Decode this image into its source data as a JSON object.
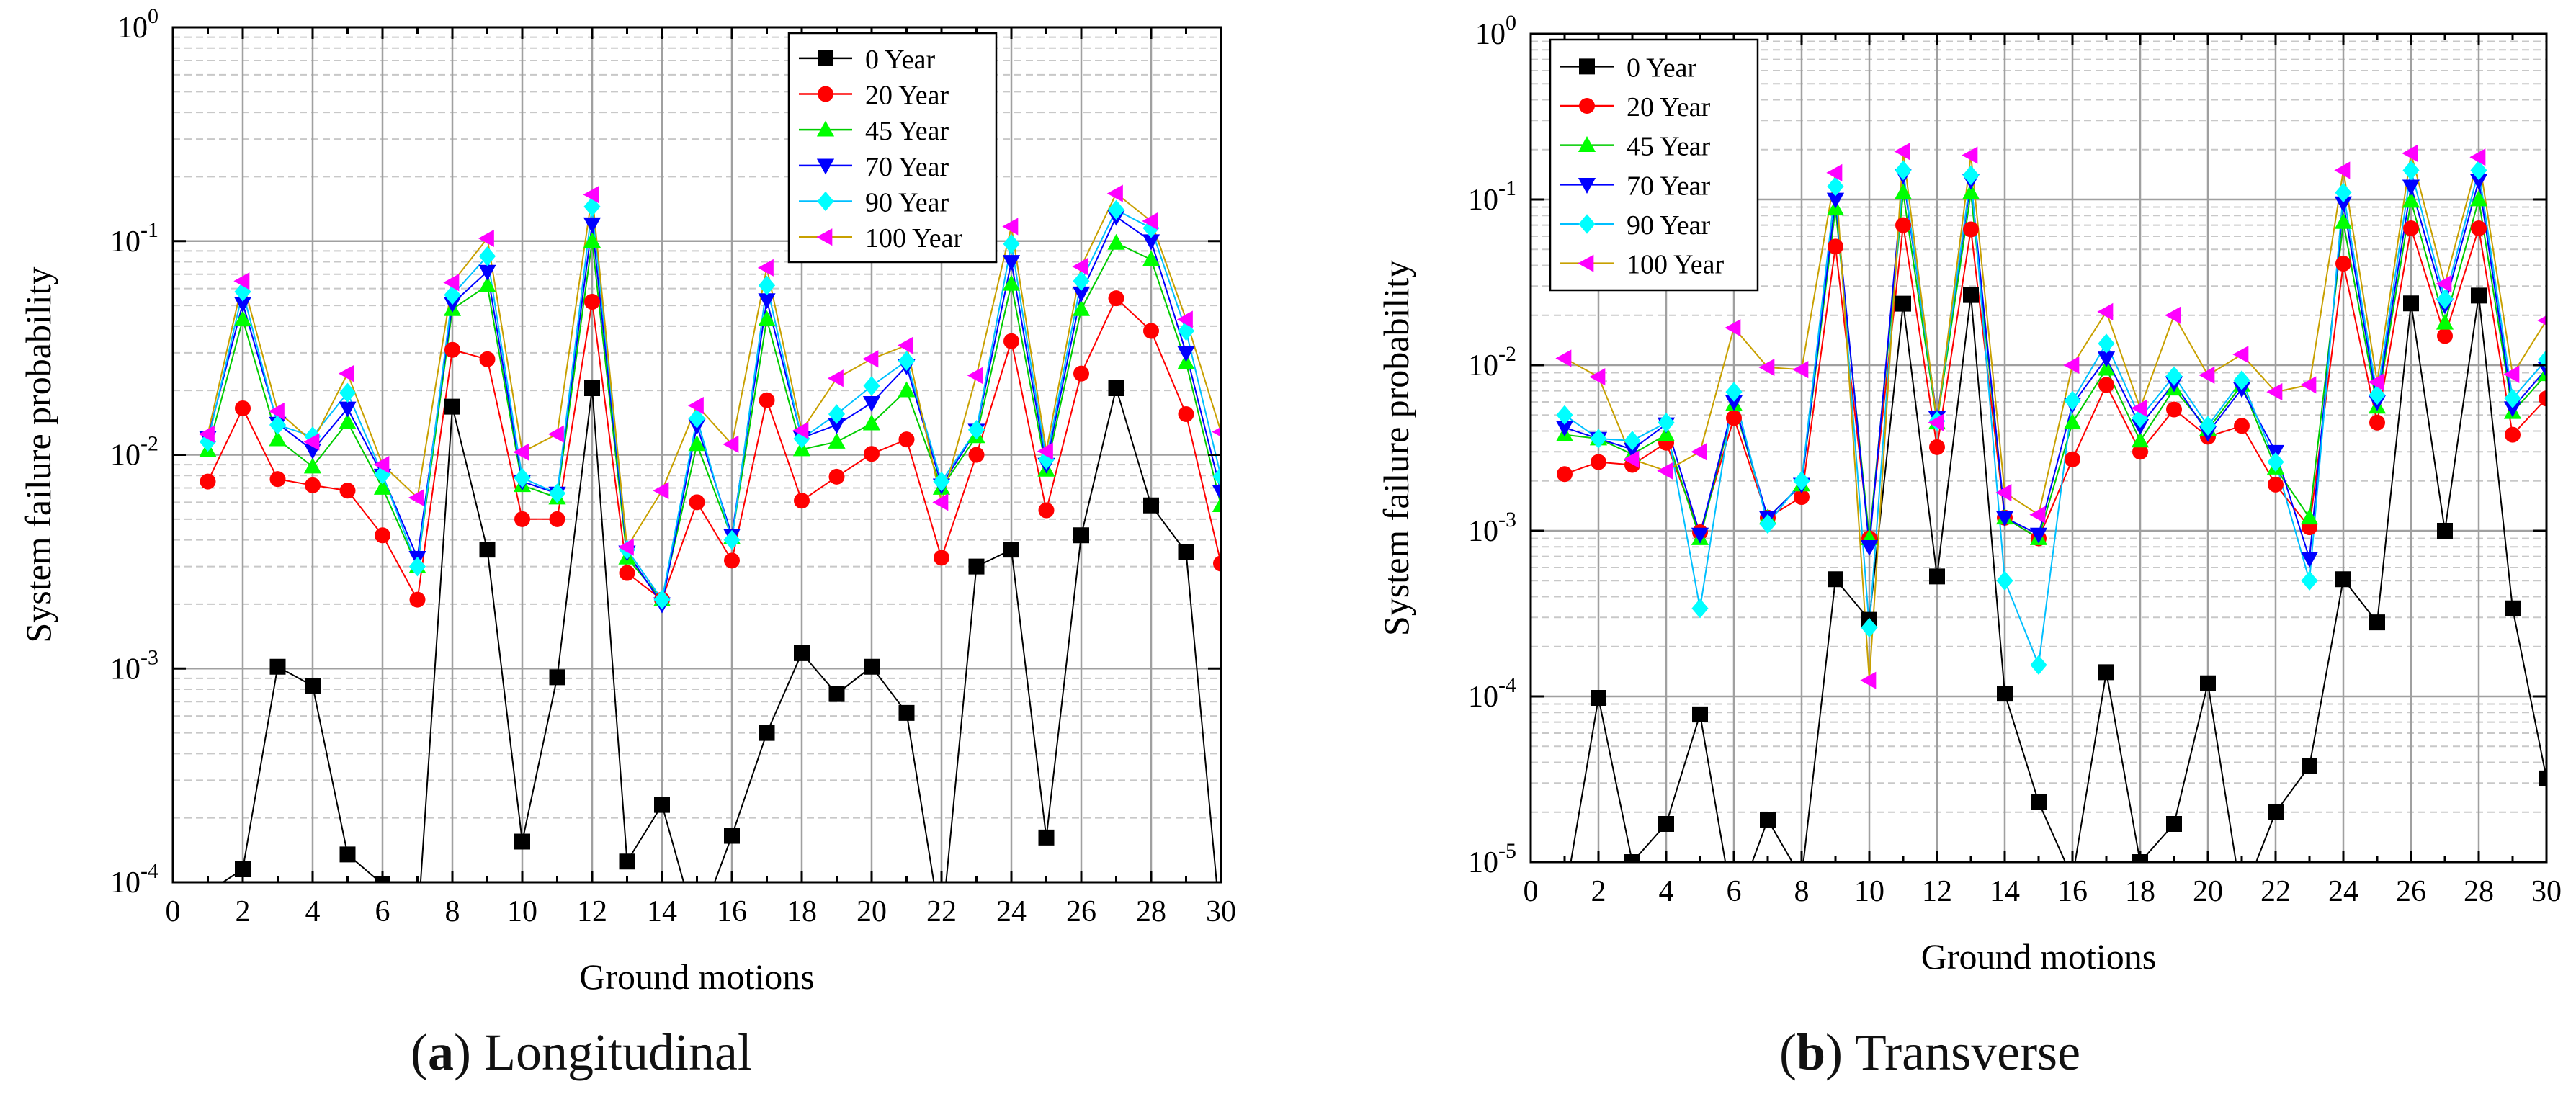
{
  "legend_order": [
    "0 Year",
    "20 Year",
    "45 Year",
    "70 Year",
    "90 Year",
    "100 Year"
  ],
  "series_style": {
    "0 Year": {
      "marker": "square",
      "fill": "#000000",
      "line": "#000000"
    },
    "20 Year": {
      "marker": "circle",
      "fill": "#ff0000",
      "line": "#ff0000"
    },
    "45 Year": {
      "marker": "triangle-up",
      "fill": "#00ff00",
      "line": "#00cc00"
    },
    "70 Year": {
      "marker": "triangle-down",
      "fill": "#0000ff",
      "line": "#0000ff"
    },
    "90 Year": {
      "marker": "diamond",
      "fill": "#00ffff",
      "line": "#00bfff"
    },
    "100 Year": {
      "marker": "triangle-left",
      "fill": "#ff00ff",
      "line": "#c8a000"
    }
  },
  "chart_data": [
    {
      "type": "line",
      "caption_letter": "a",
      "caption_text": "Longitudinal",
      "xlabel": "Ground motions",
      "ylabel": "System failure probability",
      "xlim": [
        0,
        30
      ],
      "ylim": [
        0.0001,
        1
      ],
      "yscale": "log",
      "x_ticks": [
        "0",
        "2",
        "4",
        "6",
        "8",
        "10",
        "12",
        "14",
        "16",
        "18",
        "20",
        "22",
        "24",
        "26",
        "28",
        "30"
      ],
      "y_ticks": [
        {
          "base": "10",
          "exp": "-4"
        },
        {
          "base": "10",
          "exp": "-3"
        },
        {
          "base": "10",
          "exp": "-2"
        },
        {
          "base": "10",
          "exp": "-1"
        },
        {
          "base": "10",
          "exp": "0"
        }
      ],
      "grid": true,
      "legend_position": "top-center",
      "x": [
        1,
        2,
        3,
        4,
        5,
        6,
        7,
        8,
        9,
        10,
        11,
        12,
        13,
        14,
        15,
        16,
        17,
        18,
        19,
        20,
        21,
        22,
        23,
        24,
        25,
        26,
        27,
        28,
        29,
        30
      ],
      "series": [
        {
          "name": "0 Year",
          "values": [
            9e-05,
            0.000115,
            0.00102,
            0.00083,
            0.000135,
            9.8e-05,
            6e-05,
            0.0168,
            0.0036,
            0.000155,
            0.00091,
            0.0205,
            0.000125,
            0.00023,
            6e-05,
            0.000165,
            0.0005,
            0.00118,
            0.00076,
            0.00102,
            0.00062,
            6e-05,
            0.003,
            0.0036,
            0.000162,
            0.0042,
            0.0205,
            0.0058,
            0.0035,
            6e-05
          ]
        },
        {
          "name": "20 Year",
          "values": [
            0.0075,
            0.0165,
            0.0077,
            0.0072,
            0.0068,
            0.0042,
            0.0021,
            0.031,
            0.028,
            0.005,
            0.005,
            0.052,
            0.0028,
            0.0021,
            0.006,
            0.0032,
            0.018,
            0.0061,
            0.0079,
            0.0101,
            0.0118,
            0.0033,
            0.01,
            0.034,
            0.0055,
            0.024,
            0.054,
            0.038,
            0.0155,
            0.0031
          ]
        },
        {
          "name": "45 Year",
          "values": [
            0.0105,
            0.043,
            0.0118,
            0.0088,
            0.0142,
            0.007,
            0.003,
            0.048,
            0.062,
            0.0072,
            0.0063,
            0.1,
            0.0033,
            0.0021,
            0.0112,
            0.0041,
            0.043,
            0.0106,
            0.0115,
            0.014,
            0.02,
            0.007,
            0.0122,
            0.063,
            0.0085,
            0.048,
            0.098,
            0.082,
            0.027,
            0.0058
          ]
        },
        {
          "name": "70 Year",
          "values": [
            0.012,
            0.051,
            0.014,
            0.0105,
            0.0165,
            0.008,
            0.0033,
            0.051,
            0.072,
            0.0075,
            0.0066,
            0.12,
            0.0035,
            0.002,
            0.0137,
            0.0042,
            0.053,
            0.012,
            0.0138,
            0.0175,
            0.026,
            0.0072,
            0.013,
            0.08,
            0.009,
            0.057,
            0.13,
            0.1,
            0.03,
            0.0067
          ]
        },
        {
          "name": "90 Year",
          "values": [
            0.0115,
            0.058,
            0.0138,
            0.0122,
            0.0195,
            0.0081,
            0.003,
            0.056,
            0.085,
            0.0078,
            0.0066,
            0.145,
            0.0036,
            0.0021,
            0.0148,
            0.004,
            0.062,
            0.0119,
            0.0155,
            0.021,
            0.0275,
            0.0075,
            0.0131,
            0.097,
            0.0095,
            0.065,
            0.14,
            0.115,
            0.038,
            0.0079
          ]
        },
        {
          "name": "100 Year",
          "values": [
            0.0125,
            0.065,
            0.016,
            0.0115,
            0.024,
            0.009,
            0.0063,
            0.064,
            0.103,
            0.0103,
            0.0125,
            0.165,
            0.0037,
            0.0068,
            0.017,
            0.0112,
            0.075,
            0.013,
            0.0228,
            0.0281,
            0.0325,
            0.006,
            0.0235,
            0.117,
            0.0104,
            0.076,
            0.167,
            0.124,
            0.043,
            0.0128
          ]
        }
      ]
    },
    {
      "type": "line",
      "caption_letter": "b",
      "caption_text": "Transverse",
      "xlabel": "Ground motions",
      "ylabel": "System failure probability",
      "xlim": [
        0,
        30
      ],
      "ylim": [
        1e-05,
        1
      ],
      "yscale": "log",
      "x_ticks": [
        "0",
        "2",
        "4",
        "6",
        "8",
        "10",
        "12",
        "14",
        "16",
        "18",
        "20",
        "22",
        "24",
        "26",
        "28",
        "30"
      ],
      "y_ticks": [
        {
          "base": "10",
          "exp": "-5"
        },
        {
          "base": "10",
          "exp": "-4"
        },
        {
          "base": "10",
          "exp": "-3"
        },
        {
          "base": "10",
          "exp": "-2"
        },
        {
          "base": "10",
          "exp": "-1"
        },
        {
          "base": "10",
          "exp": "0"
        }
      ],
      "grid": true,
      "legend_position": "top-left",
      "x": [
        1,
        2,
        3,
        4,
        5,
        6,
        7,
        8,
        9,
        10,
        11,
        12,
        13,
        14,
        15,
        16,
        17,
        18,
        19,
        20,
        21,
        22,
        23,
        24,
        25,
        26,
        27,
        28,
        29,
        30
      ],
      "series": [
        {
          "name": "0 Year",
          "values": [
            6e-06,
            9.8e-05,
            1e-05,
            1.7e-05,
            7.8e-05,
            5e-06,
            1.8e-05,
            8e-06,
            0.00051,
            0.00029,
            0.0235,
            0.00053,
            0.0265,
            0.000104,
            2.3e-05,
            8e-06,
            0.00014,
            1e-05,
            1.7e-05,
            0.00012,
            6e-06,
            2e-05,
            3.8e-05,
            0.00051,
            0.00028,
            0.0236,
            0.001,
            0.0263,
            0.00034,
            3.2e-05
          ]
        },
        {
          "name": "20 Year",
          "values": [
            0.0022,
            0.0026,
            0.0025,
            0.0034,
            0.00098,
            0.0048,
            0.0012,
            0.0016,
            0.052,
            0.0009,
            0.07,
            0.0032,
            0.066,
            0.0012,
            0.0009,
            0.0027,
            0.0076,
            0.003,
            0.0054,
            0.0037,
            0.0043,
            0.0019,
            0.00105,
            0.041,
            0.0045,
            0.067,
            0.015,
            0.067,
            0.0038,
            0.0063
          ]
        },
        {
          "name": "45 Year",
          "values": [
            0.0038,
            0.0036,
            0.0029,
            0.0038,
            0.0009,
            0.0058,
            0.0012,
            0.0019,
            0.088,
            0.0009,
            0.11,
            0.0045,
            0.11,
            0.0012,
            0.0009,
            0.0045,
            0.0095,
            0.0035,
            0.0072,
            0.0041,
            0.0076,
            0.0024,
            0.0012,
            0.073,
            0.0056,
            0.098,
            0.018,
            0.1,
            0.0052,
            0.0088
          ]
        },
        {
          "name": "70 Year",
          "values": [
            0.0042,
            0.0036,
            0.0031,
            0.0044,
            0.00095,
            0.006,
            0.0012,
            0.0019,
            0.1,
            0.0008,
            0.14,
            0.0048,
            0.13,
            0.0012,
            0.00095,
            0.0058,
            0.011,
            0.0043,
            0.0078,
            0.0039,
            0.0072,
            0.003,
            0.00068,
            0.095,
            0.006,
            0.12,
            0.023,
            0.13,
            0.0055,
            0.0095
          ]
        },
        {
          "name": "90 Year",
          "values": [
            0.005,
            0.0036,
            0.0035,
            0.0045,
            0.00034,
            0.0069,
            0.0011,
            0.002,
            0.12,
            0.00026,
            0.15,
            0.0046,
            0.14,
            0.0005,
            0.000155,
            0.0061,
            0.0135,
            0.0048,
            0.0086,
            0.0043,
            0.0081,
            0.0026,
            0.0005,
            0.11,
            0.0066,
            0.15,
            0.025,
            0.15,
            0.0063,
            0.0108
          ]
        },
        {
          "name": "100 Year",
          "values": [
            0.011,
            0.0085,
            0.0027,
            0.0023,
            0.003,
            0.0168,
            0.0097,
            0.0094,
            0.145,
            0.000125,
            0.195,
            0.0045,
            0.185,
            0.0017,
            0.00125,
            0.01,
            0.021,
            0.0055,
            0.02,
            0.0087,
            0.0116,
            0.0069,
            0.0076,
            0.15,
            0.0079,
            0.19,
            0.031,
            0.18,
            0.0088,
            0.0186
          ]
        }
      ]
    }
  ]
}
